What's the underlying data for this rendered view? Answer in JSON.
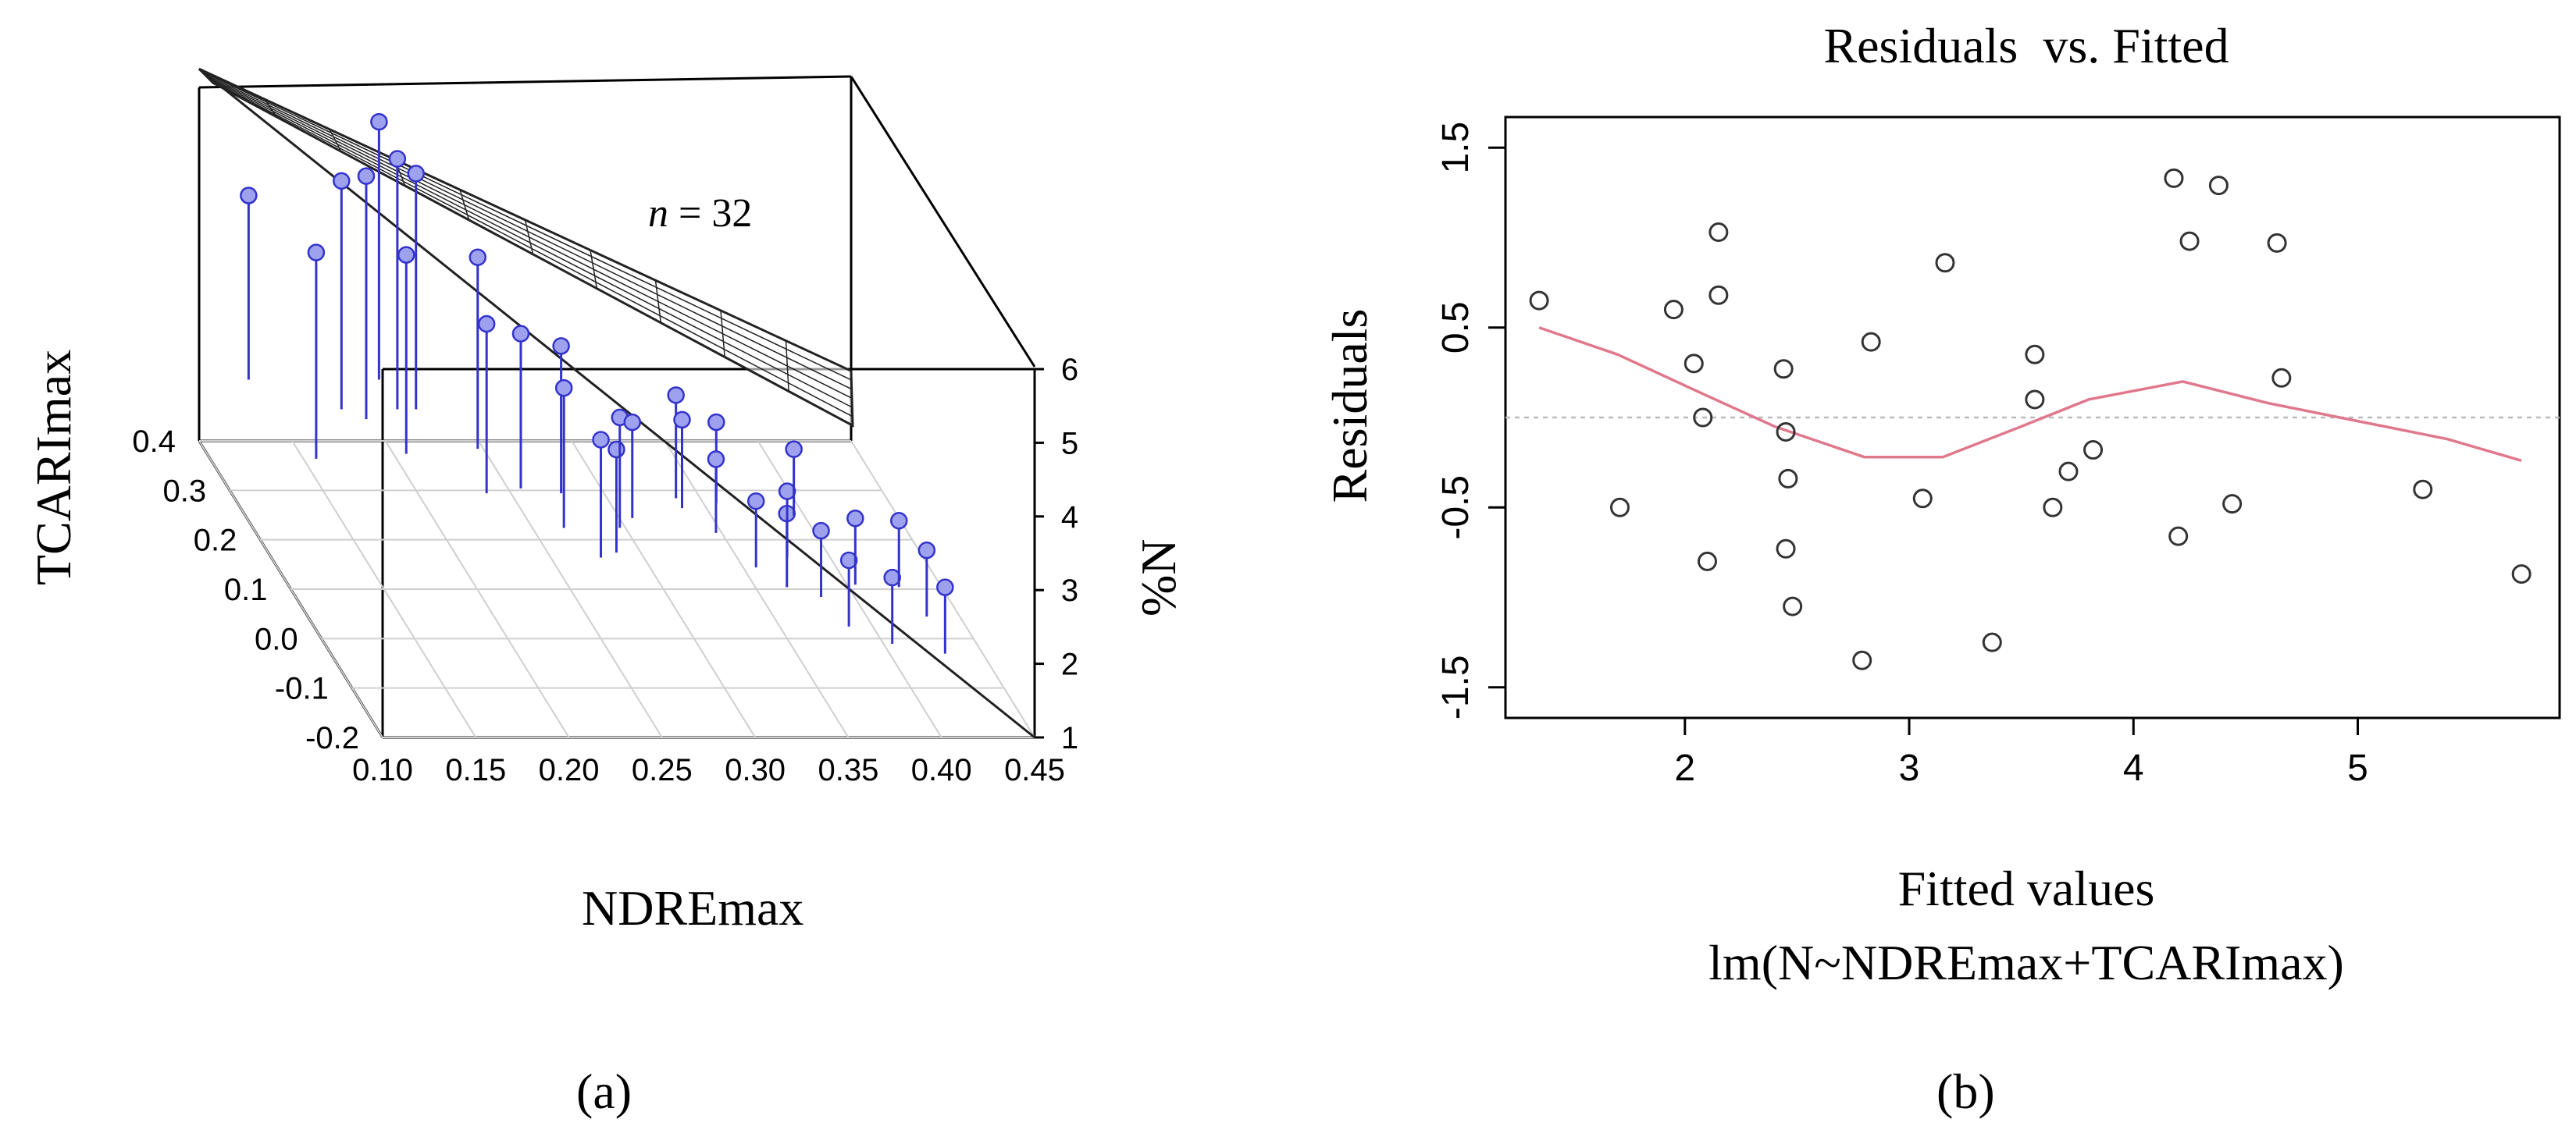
{
  "figure": {
    "panel_a_label": "(a)",
    "panel_b_label": "(b)"
  },
  "colors": {
    "stem": "#3333cc",
    "marker_fill": "#9ea2ee",
    "plane": "#222222",
    "lowess": "#e0788c",
    "zero_line": "#bbbbbb",
    "box": "#000000"
  },
  "chart_data": [
    {
      "type": "scatter",
      "subtype": "3d-scatter-with-regression-plane",
      "annotation": "n = 32",
      "annotation_var": "n",
      "annotation_rest": " = 32",
      "xlabel": "NDREmax",
      "ylabel": "TCARImax",
      "zlabel": "%N",
      "x_ticks": [
        "0.10",
        "0.15",
        "0.20",
        "0.25",
        "0.30",
        "0.35",
        "0.40",
        "0.45"
      ],
      "y_ticks": [
        "-0.2",
        "-0.1",
        "0.0",
        "0.1",
        "0.2",
        "0.3",
        "0.4"
      ],
      "z_ticks": [
        "1",
        "2",
        "3",
        "4",
        "5",
        "6"
      ],
      "xlim": [
        0.1,
        0.45
      ],
      "ylim": [
        -0.2,
        0.4
      ],
      "zlim": [
        1,
        6
      ],
      "points": [
        {
          "x": 0.12,
          "y": 0.36,
          "z": 4.6
        },
        {
          "x": 0.13,
          "y": 0.2,
          "z": 4.9
        },
        {
          "x": 0.16,
          "y": 0.3,
          "z": 5.2
        },
        {
          "x": 0.17,
          "y": 0.28,
          "z": 5.4
        },
        {
          "x": 0.19,
          "y": 0.36,
          "z": 5.6
        },
        {
          "x": 0.19,
          "y": 0.3,
          "z": 5.5
        },
        {
          "x": 0.2,
          "y": 0.3,
          "z": 5.3
        },
        {
          "x": 0.18,
          "y": 0.21,
          "z": 4.8
        },
        {
          "x": 0.22,
          "y": 0.22,
          "z": 4.7
        },
        {
          "x": 0.21,
          "y": 0.13,
          "z": 4.4
        },
        {
          "x": 0.23,
          "y": 0.14,
          "z": 4.2
        },
        {
          "x": 0.25,
          "y": 0.13,
          "z": 4.1
        },
        {
          "x": 0.24,
          "y": 0.06,
          "z": 4.0
        },
        {
          "x": 0.25,
          "y": 0.0,
          "z": 3.7
        },
        {
          "x": 0.26,
          "y": 0.01,
          "z": 3.5
        },
        {
          "x": 0.27,
          "y": 0.06,
          "z": 3.6
        },
        {
          "x": 0.28,
          "y": 0.08,
          "z": 3.4
        },
        {
          "x": 0.31,
          "y": 0.12,
          "z": 3.5
        },
        {
          "x": 0.31,
          "y": 0.1,
          "z": 3.3
        },
        {
          "x": 0.33,
          "y": 0.11,
          "z": 3.2
        },
        {
          "x": 0.32,
          "y": 0.05,
          "z": 3.1
        },
        {
          "x": 0.33,
          "y": -0.02,
          "z": 3.0
        },
        {
          "x": 0.34,
          "y": -0.06,
          "z": 3.1
        },
        {
          "x": 0.35,
          "y": 0.0,
          "z": 3.0
        },
        {
          "x": 0.36,
          "y": -0.05,
          "z": 2.8
        },
        {
          "x": 0.37,
          "y": 0.1,
          "z": 2.9
        },
        {
          "x": 0.37,
          "y": -0.08,
          "z": 2.6
        },
        {
          "x": 0.38,
          "y": -0.04,
          "z": 2.9
        },
        {
          "x": 0.39,
          "y": -0.1,
          "z": 2.5
        },
        {
          "x": 0.41,
          "y": 0.0,
          "z": 2.6
        },
        {
          "x": 0.42,
          "y": -0.03,
          "z": 2.4
        },
        {
          "x": 0.42,
          "y": -0.09,
          "z": 2.3
        }
      ]
    },
    {
      "type": "scatter",
      "title": "Residuals  vs. Fitted",
      "xlabel": "Fitted values",
      "xlabel2": "lm(N~NDREmax+TCARImax)",
      "ylabel": "Residuals",
      "xlim": [
        1.2,
        5.9
      ],
      "ylim": [
        -1.67,
        1.67
      ],
      "x_ticks": [
        2,
        3,
        4,
        5
      ],
      "y_ticks": [
        1.5,
        0.5,
        -0.5,
        -1.5
      ],
      "y_tick_labels": [
        "1.5",
        "0.5",
        "-0.5",
        "-1.5"
      ],
      "x_tick_labels": [
        "2",
        "3",
        "4",
        "5"
      ],
      "points": [
        {
          "x": 1.35,
          "y": 0.65
        },
        {
          "x": 1.71,
          "y": -0.5
        },
        {
          "x": 1.95,
          "y": 0.6
        },
        {
          "x": 2.04,
          "y": 0.3
        },
        {
          "x": 2.08,
          "y": 0.0
        },
        {
          "x": 2.1,
          "y": -0.8
        },
        {
          "x": 2.15,
          "y": 0.68
        },
        {
          "x": 2.15,
          "y": 1.03
        },
        {
          "x": 2.44,
          "y": 0.27
        },
        {
          "x": 2.45,
          "y": -0.08
        },
        {
          "x": 2.46,
          "y": -0.34
        },
        {
          "x": 2.45,
          "y": -0.73
        },
        {
          "x": 2.48,
          "y": -1.05
        },
        {
          "x": 2.79,
          "y": -1.35
        },
        {
          "x": 2.83,
          "y": 0.42
        },
        {
          "x": 3.06,
          "y": -0.45
        },
        {
          "x": 3.16,
          "y": 0.86
        },
        {
          "x": 3.37,
          "y": -1.25
        },
        {
          "x": 3.56,
          "y": 0.35
        },
        {
          "x": 3.56,
          "y": 0.1
        },
        {
          "x": 3.64,
          "y": -0.5
        },
        {
          "x": 3.71,
          "y": -0.3
        },
        {
          "x": 3.82,
          "y": -0.18
        },
        {
          "x": 4.18,
          "y": 1.33
        },
        {
          "x": 4.2,
          "y": -0.66
        },
        {
          "x": 4.25,
          "y": 0.98
        },
        {
          "x": 4.38,
          "y": 1.29
        },
        {
          "x": 4.44,
          "y": -0.48
        },
        {
          "x": 4.64,
          "y": 0.97
        },
        {
          "x": 4.66,
          "y": 0.22
        },
        {
          "x": 5.29,
          "y": -0.4
        },
        {
          "x": 5.73,
          "y": -0.87
        }
      ],
      "lowess": [
        {
          "x": 1.35,
          "y": 0.5
        },
        {
          "x": 1.7,
          "y": 0.35
        },
        {
          "x": 2.1,
          "y": 0.12
        },
        {
          "x": 2.4,
          "y": -0.05
        },
        {
          "x": 2.8,
          "y": -0.22
        },
        {
          "x": 3.15,
          "y": -0.22
        },
        {
          "x": 3.5,
          "y": -0.05
        },
        {
          "x": 3.8,
          "y": 0.1
        },
        {
          "x": 4.22,
          "y": 0.2
        },
        {
          "x": 4.6,
          "y": 0.08
        },
        {
          "x": 5.0,
          "y": -0.02
        },
        {
          "x": 5.4,
          "y": -0.12
        },
        {
          "x": 5.73,
          "y": -0.24
        }
      ],
      "zero_line": 0
    }
  ]
}
